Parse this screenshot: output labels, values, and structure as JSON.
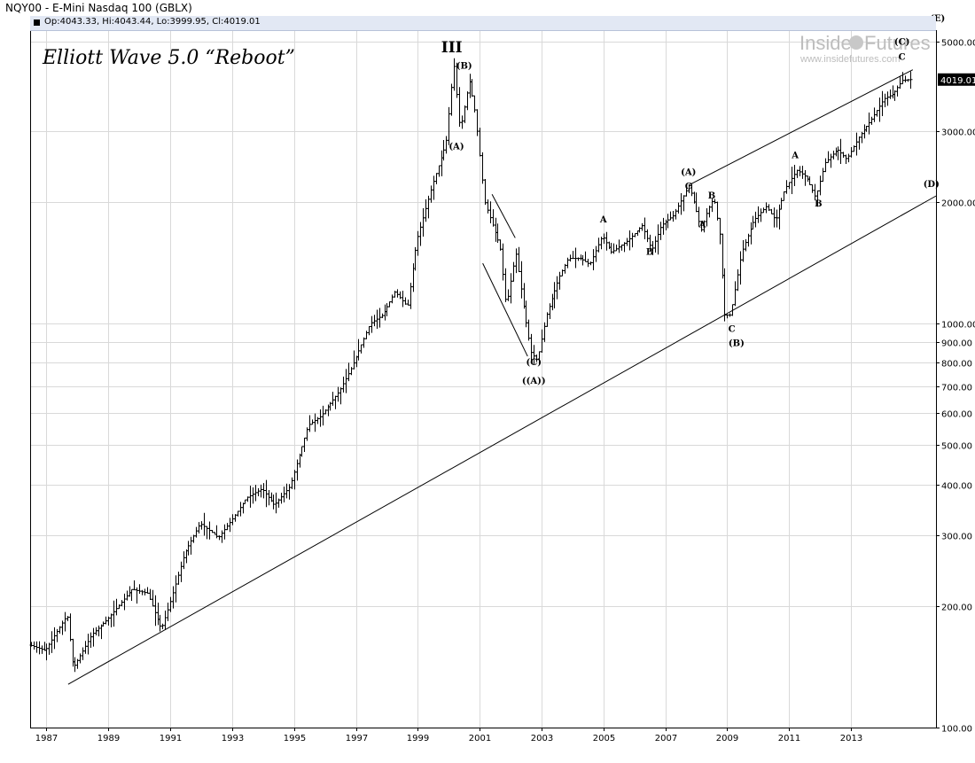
{
  "header": {
    "title": "NQY00 - E-Mini Nasdaq 100 (GBLX)",
    "ohlc": "Op:4043.33, Hi:4043.44, Lo:3999.95, Cl:4019.01"
  },
  "annotation_title": "Elliott Wave 5.0 “Reboot”",
  "watermark": {
    "brand_a": "Inside",
    "brand_b": "Futures",
    "url": "www.insidefutures.com"
  },
  "price_flag": "4019.01",
  "colors": {
    "axis_bar": "#e2e8f4",
    "bars": "#000000",
    "grid": "#d9d9d9",
    "watermark": "#b5b5b5"
  },
  "chart_data": {
    "type": "ohlc",
    "y_scale": "log",
    "ylim": [
      100,
      5300
    ],
    "xlim": [
      1986.5,
      2015.75
    ],
    "x_ticks": [
      1987,
      1989,
      1991,
      1993,
      1995,
      1997,
      1999,
      2001,
      2003,
      2005,
      2007,
      2009,
      2011,
      2013
    ],
    "y_ticks": [
      {
        "v": 5000,
        "label": "5000.00"
      },
      {
        "v": 3000,
        "label": "3000.00"
      },
      {
        "v": 2000,
        "label": "2000.00"
      },
      {
        "v": 1000,
        "label": "1000.00"
      },
      {
        "v": 900,
        "label": "900.00"
      },
      {
        "v": 800,
        "label": "800.00"
      },
      {
        "v": 700,
        "label": "700.00"
      },
      {
        "v": 600,
        "label": "600.00"
      },
      {
        "v": 500,
        "label": "500.00"
      },
      {
        "v": 400,
        "label": "400.00"
      },
      {
        "v": 300,
        "label": "300.00"
      },
      {
        "v": 200,
        "label": "200.00"
      },
      {
        "v": 100,
        "label": "100.00"
      }
    ],
    "grid": true,
    "last_close": 4019.01,
    "price_path": [
      [
        1986.5,
        160
      ],
      [
        1987.0,
        155
      ],
      [
        1987.7,
        190
      ],
      [
        1987.9,
        140
      ],
      [
        1988.5,
        170
      ],
      [
        1989.0,
        185
      ],
      [
        1989.8,
        220
      ],
      [
        1990.3,
        215
      ],
      [
        1990.75,
        175
      ],
      [
        1991.0,
        200
      ],
      [
        1991.5,
        270
      ],
      [
        1992.0,
        320
      ],
      [
        1992.6,
        295
      ],
      [
        1993.0,
        325
      ],
      [
        1993.5,
        370
      ],
      [
        1994.0,
        390
      ],
      [
        1994.4,
        355
      ],
      [
        1994.9,
        395
      ],
      [
        1995.5,
        560
      ],
      [
        1995.9,
        590
      ],
      [
        1996.5,
        680
      ],
      [
        1996.9,
        780
      ],
      [
        1997.5,
        1000
      ],
      [
        1997.9,
        1050
      ],
      [
        1998.3,
        1200
      ],
      [
        1998.7,
        1100
      ],
      [
        1999.0,
        1600
      ],
      [
        1999.5,
        2200
      ],
      [
        1999.95,
        2800
      ],
      [
        2000.2,
        4400
      ],
      [
        2000.4,
        3000
      ],
      [
        2000.7,
        4000
      ],
      [
        2000.9,
        3300
      ],
      [
        2001.2,
        2000
      ],
      [
        2001.7,
        1550
      ],
      [
        2001.9,
        1100
      ],
      [
        2002.2,
        1500
      ],
      [
        2002.5,
        1050
      ],
      [
        2002.7,
        850
      ],
      [
        2002.9,
        810
      ],
      [
        2003.2,
        1050
      ],
      [
        2003.6,
        1300
      ],
      [
        2003.9,
        1450
      ],
      [
        2004.3,
        1450
      ],
      [
        2004.6,
        1400
      ],
      [
        2005.0,
        1650
      ],
      [
        2005.3,
        1500
      ],
      [
        2005.8,
        1600
      ],
      [
        2006.3,
        1750
      ],
      [
        2006.6,
        1520
      ],
      [
        2006.9,
        1750
      ],
      [
        2007.3,
        1850
      ],
      [
        2007.8,
        2200
      ],
      [
        2008.0,
        1950
      ],
      [
        2008.2,
        1700
      ],
      [
        2008.4,
        1900
      ],
      [
        2008.6,
        2050
      ],
      [
        2008.8,
        1650
      ],
      [
        2008.95,
        1050
      ],
      [
        2009.15,
        1050
      ],
      [
        2009.5,
        1500
      ],
      [
        2009.9,
        1800
      ],
      [
        2010.3,
        1950
      ],
      [
        2010.6,
        1800
      ],
      [
        2010.9,
        2150
      ],
      [
        2011.3,
        2400
      ],
      [
        2011.6,
        2300
      ],
      [
        2011.9,
        2050
      ],
      [
        2012.2,
        2500
      ],
      [
        2012.6,
        2700
      ],
      [
        2012.9,
        2550
      ],
      [
        2013.3,
        2900
      ],
      [
        2013.7,
        3200
      ],
      [
        2014.1,
        3600
      ],
      [
        2014.4,
        3700
      ],
      [
        2014.7,
        4000
      ],
      [
        2014.95,
        4019.01
      ]
    ],
    "lines": [
      {
        "name": "lower-trendline",
        "from": [
          1987.7,
          128
        ],
        "to": [
          2015.75,
          2070
        ]
      },
      {
        "name": "upper-trendline",
        "from": [
          2007.75,
          2200
        ],
        "to": [
          2015.0,
          4250
        ]
      },
      {
        "name": "wedge-upper",
        "from": [
          2001.4,
          2090
        ],
        "to": [
          2002.15,
          1630
        ]
      },
      {
        "name": "wedge-lower",
        "from": [
          2001.1,
          1410
        ],
        "to": [
          2002.55,
          830
        ]
      }
    ],
    "wave_labels": [
      {
        "text": "III",
        "x": 2000.1,
        "y": 4700,
        "big": true
      },
      {
        "text": "(B)",
        "x": 2000.5,
        "y": 4280
      },
      {
        "text": "(A)",
        "x": 2000.25,
        "y": 2700
      },
      {
        "text": "(C)",
        "x": 2002.75,
        "y": 790
      },
      {
        "text": "((A))",
        "x": 2002.75,
        "y": 710
      },
      {
        "text": "A",
        "x": 2005.0,
        "y": 1780
      },
      {
        "text": "B",
        "x": 2006.5,
        "y": 1480
      },
      {
        "text": "(A)",
        "x": 2007.75,
        "y": 2330
      },
      {
        "text": "C",
        "x": 2007.75,
        "y": 2150
      },
      {
        "text": "A",
        "x": 2008.2,
        "y": 1730
      },
      {
        "text": "B",
        "x": 2008.5,
        "y": 2040
      },
      {
        "text": "C",
        "x": 2009.15,
        "y": 955
      },
      {
        "text": "(B)",
        "x": 2009.3,
        "y": 880
      },
      {
        "text": "A",
        "x": 2011.2,
        "y": 2570
      },
      {
        "text": "B",
        "x": 2011.95,
        "y": 1950
      },
      {
        "text": "(C)",
        "x": 2014.65,
        "y": 4900
      },
      {
        "text": "C",
        "x": 2014.65,
        "y": 4500
      },
      {
        "text": "(D)",
        "x": 2015.6,
        "y": 2180
      },
      {
        "text": "(E)",
        "x": 2015.8,
        "y": 5600
      }
    ]
  }
}
